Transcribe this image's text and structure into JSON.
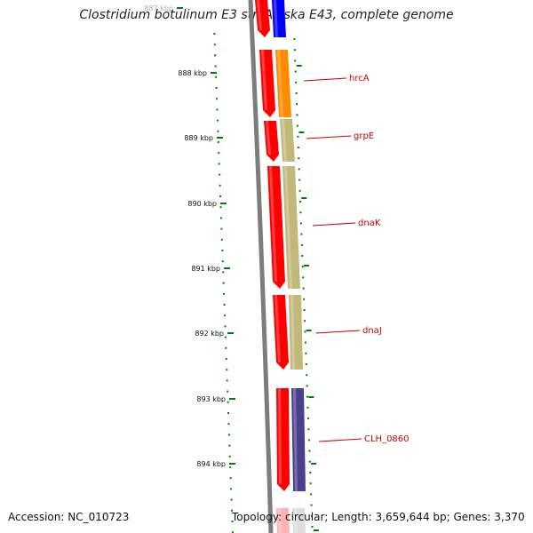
{
  "title": "Clostridium botulinum E3 str. Alaska E43, complete genome",
  "footer": {
    "accession": "Accession: NC_010723",
    "summary": "Topology: circular; Length: 3,659,644 bp; Genes: 3,370"
  },
  "axis": {
    "ticks": [
      "887 kbp",
      "888 kbp",
      "889 kbp",
      "890 kbp",
      "891 kbp",
      "892 kbp",
      "893 kbp",
      "894 kbp"
    ]
  },
  "genes": [
    {
      "name": "hrcA",
      "color": "#ff8c00"
    },
    {
      "name": "grpE",
      "color": "#c2b87a"
    },
    {
      "name": "dnaK",
      "color": "#c2b87a"
    },
    {
      "name": "dnaJ",
      "color": "#c2b87a"
    },
    {
      "name": "CLH_0860",
      "color": "#4b3f8c"
    }
  ],
  "colors": {
    "reverse_strand": "#ff0000",
    "forward_top": "#0000ff",
    "backbone": "#8a8a8a",
    "tick": "#008000",
    "label": "#cc0000"
  }
}
